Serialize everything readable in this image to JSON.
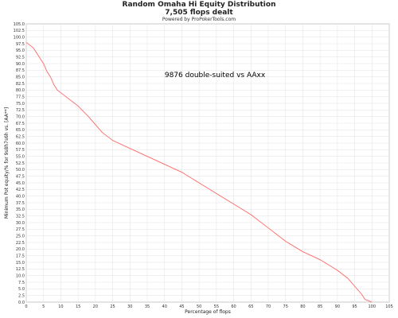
{
  "chart_data": {
    "type": "line",
    "title": "Random Omaha Hi Equity Distribution",
    "subtitle": "7,505 flops dealt",
    "credit": "Powered by ProPokerTools.com",
    "annotation": "9876 double-suited vs AAxx",
    "xlabel": "Percentage of flops",
    "ylabel": "Minimum Pot equity/% for 9s8h7s6h vs. [AA**]",
    "xlim": [
      0,
      105
    ],
    "ylim": [
      0,
      105
    ],
    "xticks": [
      0,
      5,
      10,
      15,
      20,
      25,
      30,
      35,
      40,
      45,
      50,
      55,
      60,
      65,
      70,
      75,
      80,
      85,
      90,
      95,
      100,
      105
    ],
    "yticks": [
      0,
      2.5,
      5,
      7.5,
      10,
      12.5,
      15,
      17.5,
      20,
      22.5,
      25,
      27.5,
      30,
      32.5,
      35,
      37.5,
      40,
      42.5,
      45,
      47.5,
      50,
      52.5,
      55,
      57.5,
      60,
      62.5,
      65,
      67.5,
      70,
      72.5,
      75,
      77.5,
      80,
      82.5,
      85,
      87.5,
      90,
      92.5,
      95,
      97.5,
      100,
      102.5,
      105
    ],
    "grid": true,
    "line_color": "#ff6666",
    "series": [
      {
        "x": [
          0,
          1,
          2,
          3,
          4,
          5,
          6,
          7,
          8,
          9,
          10,
          12,
          15,
          18,
          20,
          22,
          25,
          30,
          35,
          40,
          45,
          50,
          55,
          60,
          65,
          70,
          75,
          80,
          85,
          90,
          93,
          95,
          97,
          98,
          99,
          100
        ],
        "y": [
          98,
          97,
          96,
          94,
          92,
          90,
          87,
          85,
          82,
          80,
          79,
          77,
          74,
          70,
          67,
          64,
          61,
          58,
          55,
          52,
          49,
          45,
          41,
          37,
          33,
          28,
          23,
          19,
          16,
          12,
          9,
          6,
          3,
          1,
          0.5,
          0
        ]
      }
    ]
  }
}
